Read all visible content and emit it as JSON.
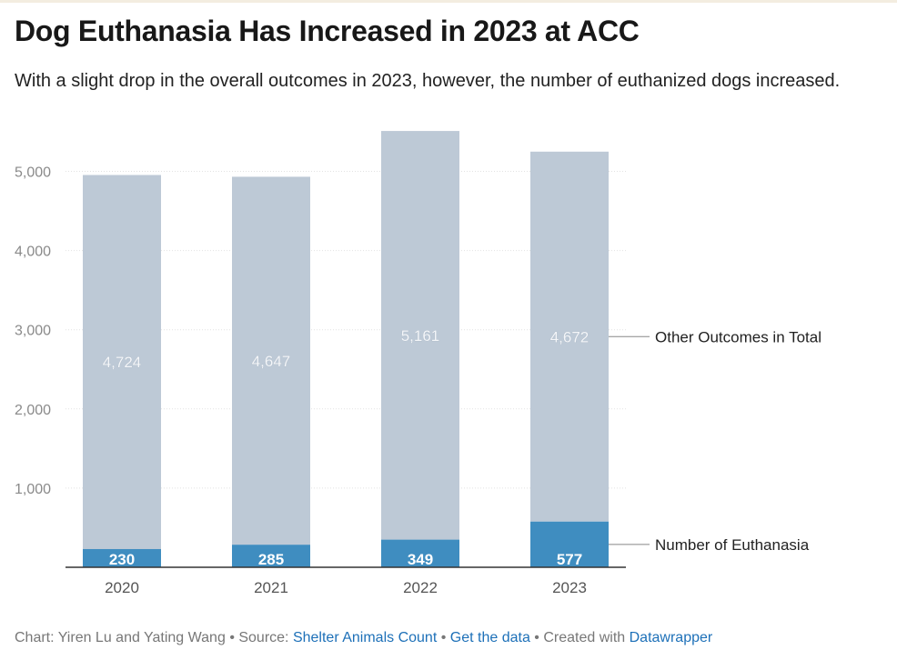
{
  "title": "Dog Euthanasia Has Increased in 2023 at ACC",
  "subtitle": "With a slight drop in the overall outcomes in 2023, however, the number of euthanized dogs increased.",
  "footer": {
    "chart_prefix": "Chart: Yiren Lu and Yating Wang",
    "source_prefix": "• Source:",
    "source_link": "Shelter Animals Count",
    "get_data": "Get the data",
    "created_prefix": "• Created with",
    "created_link": "Datawrapper"
  },
  "chart_data": {
    "type": "bar",
    "stacked": true,
    "categories": [
      "2020",
      "2021",
      "2022",
      "2023"
    ],
    "series": [
      {
        "name": "Number of Euthanasia",
        "values": [
          230,
          285,
          349,
          577
        ],
        "color": "#3f8dc0"
      },
      {
        "name": "Other Outcomes in Total",
        "values": [
          4724,
          4647,
          5161,
          4672
        ],
        "color": "#bdc9d6"
      }
    ],
    "ylim": [
      0,
      5500
    ],
    "yticks": [
      1000,
      2000,
      3000,
      4000,
      5000
    ],
    "ytick_labels": [
      "1,000",
      "2,000",
      "3,000",
      "4,000",
      "5,000"
    ],
    "grid": true,
    "legend": "direct labels right"
  }
}
